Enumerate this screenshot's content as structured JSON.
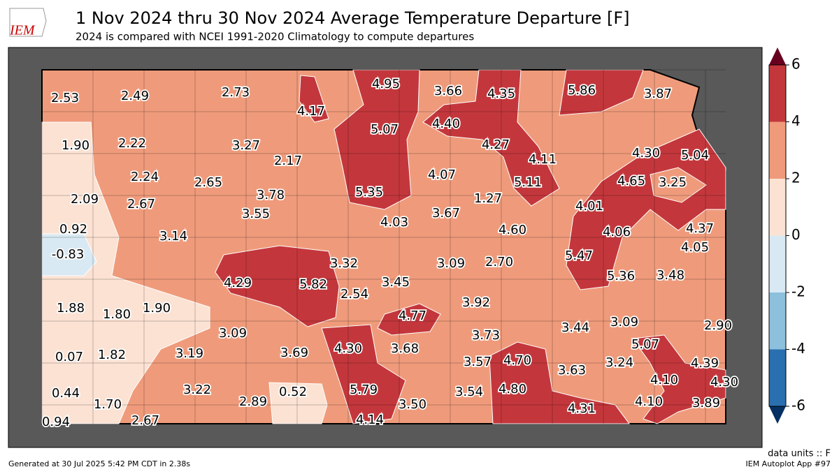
{
  "header": {
    "logo": "IEM",
    "title": "1 Nov 2024 thru 30 Nov 2024 Average Temperature Departure [F]",
    "subtitle": "2024 is compared with NCEI 1991-2020 Climatology to compute departures"
  },
  "map": {
    "values": [
      2.53,
      2.49,
      2.73,
      4.17,
      4.95,
      3.66,
      4.35,
      5.86,
      3.87,
      1.9,
      2.22,
      3.27,
      2.17,
      5.07,
      4.4,
      4.27,
      4.11,
      4.3,
      5.04,
      2.24,
      2.65,
      3.78,
      5.35,
      4.07,
      5.11,
      4.65,
      3.25,
      2.09,
      2.67,
      3.55,
      1.27,
      4.01,
      0.92,
      3.14,
      4.03,
      3.67,
      4.6,
      4.06,
      4.37,
      -0.83,
      4.05,
      5.47,
      3.32,
      3.09,
      2.7,
      4.29,
      5.82,
      3.45,
      5.36,
      3.48,
      1.88,
      1.8,
      1.9,
      2.54,
      3.92,
      4.77,
      3.44,
      3.09,
      2.9,
      3.09,
      3.73,
      5.07,
      0.07,
      1.82,
      3.19,
      3.69,
      4.3,
      3.68,
      3.57,
      4.7,
      3.63,
      3.24,
      4.39,
      4.1,
      4.3,
      0.44,
      3.22,
      2.89,
      0.52,
      5.79,
      3.54,
      4.8,
      1.7,
      3.5,
      4.31,
      4.1,
      3.89,
      0.94,
      2.67,
      4.14
    ],
    "value_labels": [
      "2.53",
      "2.49",
      "2.73",
      "4.17",
      "4.95",
      "3.66",
      "4.35",
      "5.86",
      "3.87",
      "1.90",
      "2.22",
      "3.27",
      "2.17",
      "5.07",
      "4.40",
      "4.27",
      "4.11",
      "4.30",
      "5.04",
      "2.24",
      "2.65",
      "3.78",
      "5.35",
      "4.07",
      "5.11",
      "4.65",
      "3.25",
      "2.09",
      "2.67",
      "3.55",
      "1.27",
      "4.01",
      "0.92",
      "3.14",
      "4.03",
      "3.67",
      "4.60",
      "4.06",
      "4.37",
      "-0.83",
      "4.05",
      "5.47",
      "3.32",
      "3.09",
      "2.70",
      "4.29",
      "5.82",
      "3.45",
      "5.36",
      "3.48",
      "1.88",
      "1.80",
      "1.90",
      "2.54",
      "3.92",
      "4.77",
      "3.44",
      "3.09",
      "2.90",
      "3.09",
      "3.73",
      "5.07",
      "0.07",
      "1.82",
      "3.19",
      "3.69",
      "4.30",
      "3.68",
      "3.57",
      "4.70",
      "3.63",
      "3.24",
      "4.39",
      "4.10",
      "4.30",
      "0.44",
      "3.22",
      "2.89",
      "0.52",
      "5.79",
      "3.54",
      "4.80",
      "1.70",
      "3.50",
      "4.31",
      "4.10",
      "3.89",
      "0.94",
      "2.67",
      "4.14"
    ]
  },
  "colorbar": {
    "ticks": [
      -6,
      -4,
      -2,
      0,
      2,
      4,
      6
    ],
    "colors": [
      "#2a6fb0",
      "#8cc0dd",
      "#d9e9f3",
      "#fce2d3",
      "#ef9b7b",
      "#c3373c"
    ],
    "over": "#67001f",
    "under": "#053061"
  },
  "footer": {
    "units": "data units :: F",
    "generated": "Generated at 30 Jul 2025 5:42 PM CDT in 2.38s",
    "app": "IEM Autoplot App #97"
  }
}
